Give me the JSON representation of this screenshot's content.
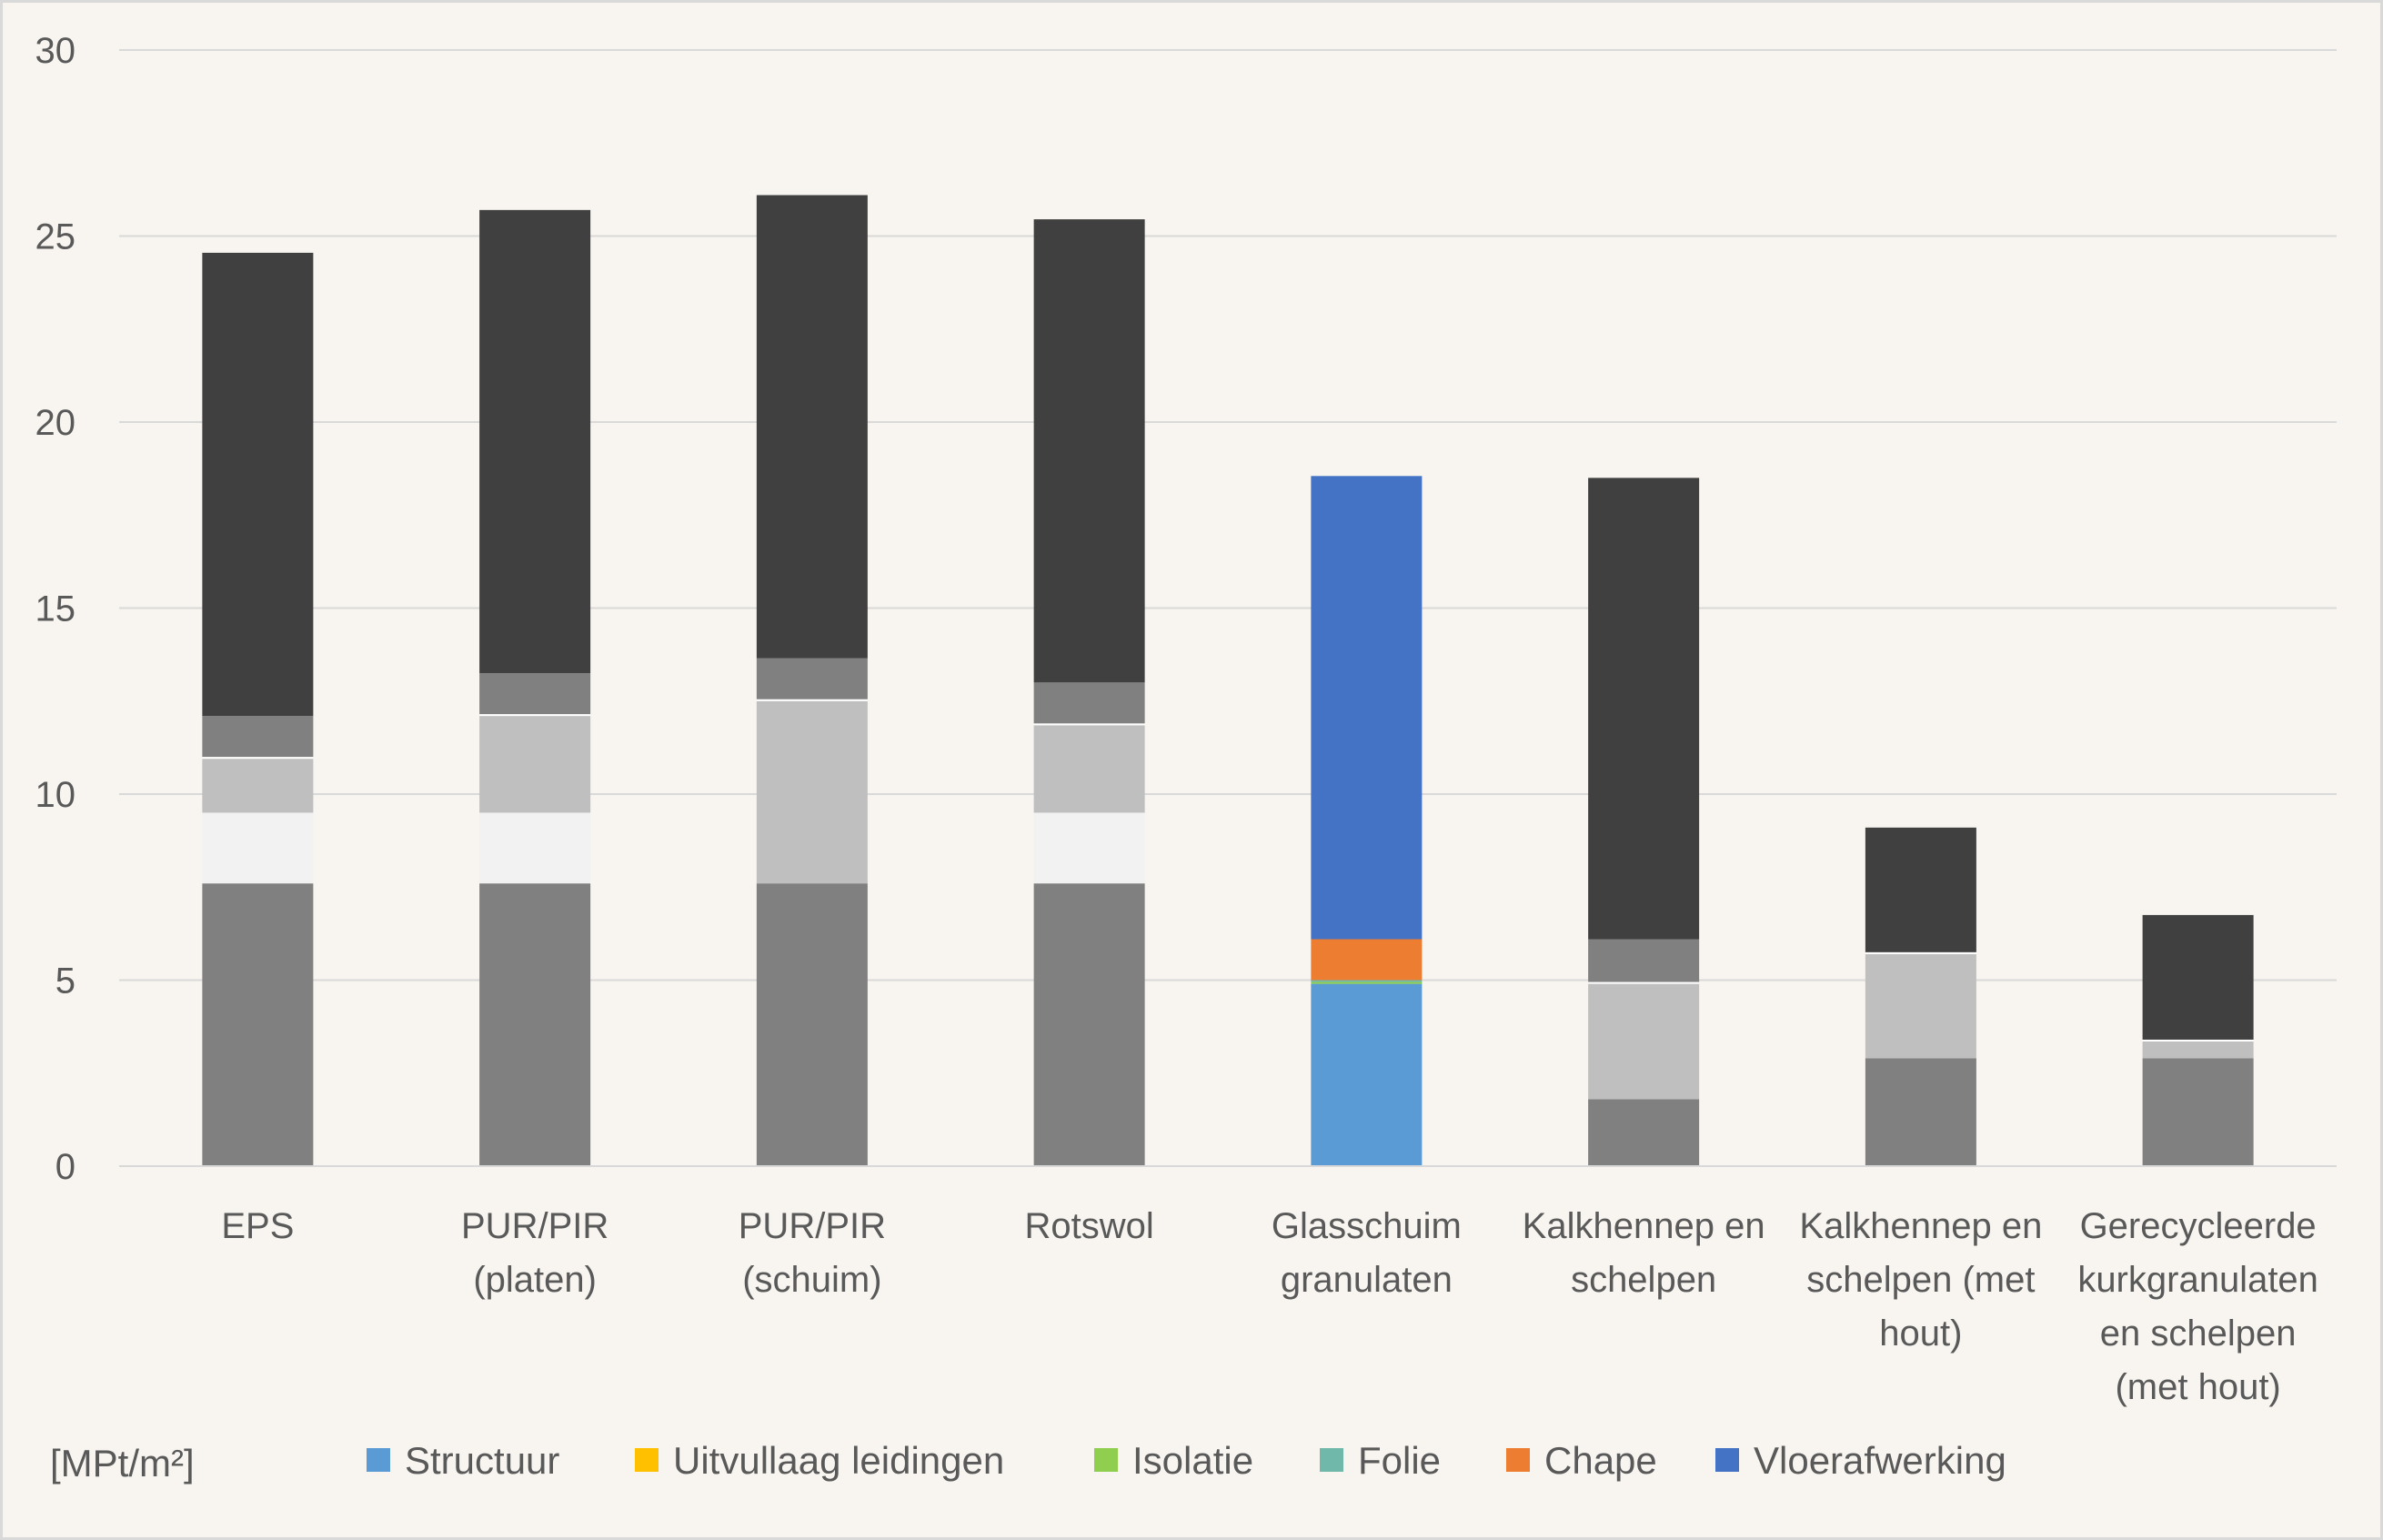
{
  "chart_data": {
    "type": "bar",
    "stacked": true,
    "title": "",
    "xlabel": "",
    "ylabel": "",
    "unit_label": "[MPt/m²]",
    "ylim": [
      0,
      30
    ],
    "yticks": [
      0,
      5,
      10,
      15,
      20,
      25,
      30
    ],
    "grid": true,
    "legend_position": "bottom",
    "categories": [
      [
        "EPS"
      ],
      [
        "PUR/PIR",
        "(platen)"
      ],
      [
        "PUR/PIR",
        "(schuim)"
      ],
      [
        "Rotswol"
      ],
      [
        "Glasschuim",
        "granulaten"
      ],
      [
        "Kalkhennep en",
        "schelpen"
      ],
      [
        "Kalkhennep en",
        "schelpen (met",
        "hout)"
      ],
      [
        "Gerecycleerde",
        "kurkgranulaten",
        "en schelpen",
        "(met hout)"
      ]
    ],
    "series": [
      {
        "name": "Structuur",
        "legend_color": "#5b9bd5",
        "values": [
          7.6,
          7.6,
          7.6,
          7.6,
          4.9,
          1.8,
          2.9,
          2.9
        ]
      },
      {
        "name": "Uitvullaag leidingen",
        "legend_color": "#ffc000",
        "values": [
          1.9,
          1.9,
          0.0,
          1.9,
          0.0,
          0.0,
          0.0,
          0.0
        ]
      },
      {
        "name": "Isolatie",
        "legend_color": "#8fce4f",
        "values": [
          1.45,
          2.6,
          4.9,
          2.35,
          0.05,
          3.1,
          2.8,
          0.45
        ]
      },
      {
        "name": "Folie",
        "legend_color": "#70b8aa",
        "values": [
          0.05,
          0.05,
          0.05,
          0.05,
          0.05,
          0.05,
          0.05,
          0.05
        ]
      },
      {
        "name": "Chape",
        "legend_color": "#ed7d31",
        "values": [
          1.1,
          1.1,
          1.1,
          1.1,
          1.1,
          1.15,
          0.0,
          0.0
        ]
      },
      {
        "name": "Vloerafwerking",
        "legend_color": "#4472c4",
        "values": [
          12.45,
          12.45,
          12.45,
          12.45,
          12.45,
          12.4,
          3.35,
          3.35
        ]
      }
    ],
    "bar_colors": [
      [
        "#808080",
        "#f2f2f2",
        "#bfbfbf",
        "#ffffff",
        "#808080",
        "#404040"
      ],
      [
        "#808080",
        "#f2f2f2",
        "#bfbfbf",
        "#ffffff",
        "#808080",
        "#404040"
      ],
      [
        "#808080",
        "#f2f2f2",
        "#bfbfbf",
        "#ffffff",
        "#808080",
        "#404040"
      ],
      [
        "#808080",
        "#f2f2f2",
        "#bfbfbf",
        "#ffffff",
        "#808080",
        "#404040"
      ],
      [
        "#5b9bd5",
        "#ffc000",
        "#8fce4f",
        "#70b8aa",
        "#ed7d31",
        "#4472c4"
      ],
      [
        "#808080",
        "#f2f2f2",
        "#bfbfbf",
        "#ffffff",
        "#808080",
        "#404040"
      ],
      [
        "#808080",
        "#f2f2f2",
        "#bfbfbf",
        "#ffffff",
        "#808080",
        "#404040"
      ],
      [
        "#808080",
        "#f2f2f2",
        "#bfbfbf",
        "#ffffff",
        "#808080",
        "#404040"
      ]
    ]
  }
}
